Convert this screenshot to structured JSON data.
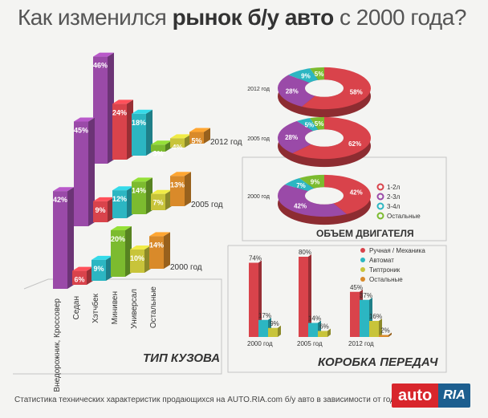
{
  "title": {
    "part1": "Как изменился ",
    "bold": "рынок б/у авто",
    "part2": " с 2000 года?"
  },
  "footer": "Статистика технических характеристик продающихся на AUTO.RIA.com б/у авто в зависимости от года выпуска",
  "logo": {
    "auto": "auto",
    "ria": "RIA"
  },
  "colors": {
    "red": "#d9434b",
    "purple": "#9a4aa8",
    "teal": "#2cb6c2",
    "green": "#7cbb2f",
    "yellow": "#c8c43a",
    "orange": "#d98a2a"
  },
  "panels": {
    "body": "ТИП КУЗОВА",
    "engine": "ОБЪЕМ ДВИГАТЕЛЯ",
    "gearbox": "КОРОБКА ПЕРЕДАЧ"
  },
  "chart_data": [
    {
      "type": "bar",
      "title": "ТИП КУЗОВА",
      "categories": [
        "Внедорожник, Кроссовер",
        "Седан",
        "Хэтчбек",
        "Минивен",
        "Универсал",
        "Остальные"
      ],
      "series": [
        {
          "name": "2012 год",
          "values": [
            46,
            24,
            18,
            3,
            4,
            5
          ]
        },
        {
          "name": "2005 год",
          "values": [
            45,
            9,
            12,
            14,
            7,
            13
          ]
        },
        {
          "name": "2000 год",
          "values": [
            42,
            6,
            9,
            20,
            10,
            14
          ]
        }
      ]
    },
    {
      "type": "pie",
      "title": "ОБЪЕМ ДВИГАТЕЛЯ",
      "legend": [
        "1-2л",
        "2-3л",
        "3-4л",
        "Остальные"
      ],
      "series": [
        {
          "name": "2012 год",
          "values": [
            58,
            28,
            9,
            5
          ]
        },
        {
          "name": "2005 год",
          "values": [
            62,
            28,
            5,
            5
          ]
        },
        {
          "name": "2000 год",
          "values": [
            42,
            42,
            7,
            9
          ]
        }
      ]
    },
    {
      "type": "bar",
      "title": "КОРОБКА ПЕРЕДАЧ",
      "categories": [
        "2000 год",
        "2005 год",
        "2012 год"
      ],
      "legend": [
        "Ручная / Механика",
        "Автомат",
        "Типтроник",
        "Остальные"
      ],
      "series": [
        {
          "name": "Ручная / Механика",
          "values": [
            74,
            80,
            45
          ]
        },
        {
          "name": "Автомат",
          "values": [
            17,
            14,
            37
          ]
        },
        {
          "name": "Типтроник",
          "values": [
            9,
            6,
            16
          ]
        },
        {
          "name": "Остальные",
          "values": [
            0,
            0,
            2
          ]
        }
      ],
      "data_labels": [
        [
          "74%",
          "17%",
          "9%",
          ""
        ],
        [
          "80%",
          "14%",
          "6%",
          ""
        ],
        [
          "45%",
          "37%",
          "16%",
          "2%"
        ]
      ]
    }
  ]
}
